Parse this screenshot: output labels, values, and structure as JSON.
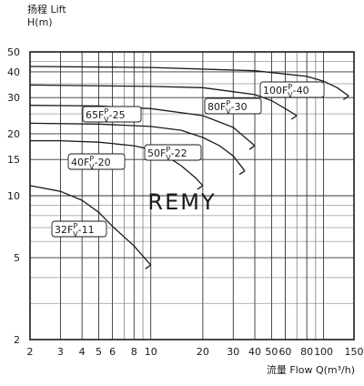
{
  "chart_data": {
    "type": "line",
    "title": "",
    "ylabel": "扬程 Lift\nH(m)",
    "xlabel": "流量 Flow  Q(m³/h)",
    "x_scale": "log",
    "y_scale": "log",
    "xlim": [
      2,
      150
    ],
    "ylim": [
      2,
      50
    ],
    "grid": true,
    "x_ticks": [
      2,
      3,
      4,
      5,
      6,
      8,
      10,
      20,
      30,
      40,
      50,
      60,
      80,
      100,
      150
    ],
    "x_tick_labels": [
      "2",
      "3",
      "4",
      "5",
      "6",
      "8",
      "10",
      "20",
      "30",
      "40",
      "50",
      "60",
      "80",
      "100",
      "150"
    ],
    "y_ticks": [
      2,
      5,
      10,
      15,
      20,
      30,
      40,
      50
    ],
    "y_tick_labels": [
      "2",
      "5",
      "10",
      "15",
      "20",
      "30",
      "40",
      "50"
    ],
    "watermark": "REMY",
    "series": [
      {
        "name": "32FPV-11",
        "label_main": "32F",
        "label_sup": "P",
        "label_sub": "V",
        "label_tail": "-11",
        "x": [
          2,
          3,
          4,
          5,
          6,
          8,
          10
        ],
        "y": [
          11.2,
          10.5,
          9.5,
          8.3,
          7.1,
          5.7,
          4.6
        ]
      },
      {
        "name": "40FPV-20",
        "label_main": "40F",
        "label_sup": "P",
        "label_sub": "V",
        "label_tail": "-20",
        "x": [
          2,
          3,
          5,
          8,
          10,
          12,
          15,
          18,
          20
        ],
        "y": [
          18.5,
          18.5,
          18.2,
          17.5,
          16.8,
          15.8,
          14.0,
          12.3,
          11.2
        ]
      },
      {
        "name": "50FPV-22",
        "label_main": "50F",
        "label_sup": "P",
        "label_sub": "V",
        "label_tail": "-22",
        "x": [
          2,
          5,
          10,
          15,
          20,
          25,
          30,
          35
        ],
        "y": [
          22.5,
          22.3,
          21.7,
          20.8,
          19.2,
          17.5,
          15.6,
          13.2
        ]
      },
      {
        "name": "65FPV-25",
        "label_main": "65F",
        "label_sup": "P",
        "label_sub": "V",
        "label_tail": "-25",
        "x": [
          2,
          5,
          10,
          20,
          30,
          40
        ],
        "y": [
          27.5,
          27.3,
          26.5,
          24.5,
          21.5,
          17.5
        ]
      },
      {
        "name": "80FPV-30",
        "label_main": "80F",
        "label_sup": "P",
        "label_sub": "V",
        "label_tail": "-30",
        "x": [
          2,
          10,
          20,
          40,
          50,
          60,
          70
        ],
        "y": [
          34.5,
          34.0,
          33.5,
          31.0,
          29.0,
          26.5,
          24.5
        ]
      },
      {
        "name": "100FPV-40",
        "label_main": "100F",
        "label_sup": "P",
        "label_sub": "V",
        "label_tail": "-40",
        "x": [
          2,
          10,
          40,
          80,
          100,
          120,
          140
        ],
        "y": [
          42.5,
          42.0,
          40.5,
          38.0,
          36.0,
          33.5,
          30.5
        ]
      }
    ]
  }
}
